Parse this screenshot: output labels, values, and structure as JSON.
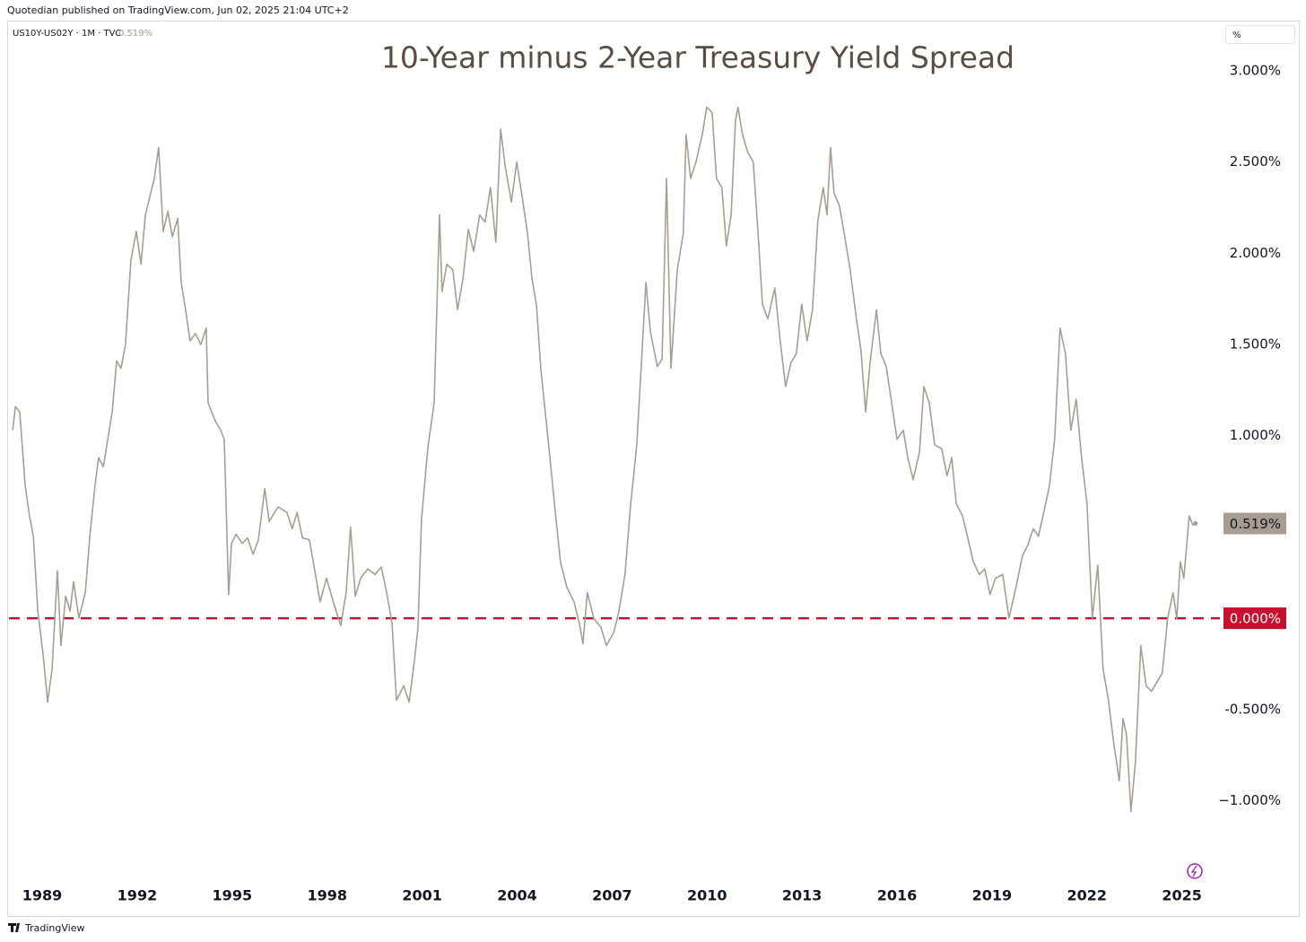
{
  "chart_data": {
    "type": "line",
    "header": "Quotedian published on TradingView.com, Jun 02, 2025 21:04 UTC+2",
    "title": "10-Year minus 2-Year Treasury Yield Spread",
    "unit_button": "%",
    "brand": "TradingView",
    "last_label": "0.519%",
    "x": [
      1988.07,
      1988.15,
      1988.29,
      1988.46,
      1988.6,
      1988.72,
      1988.86,
      1989.03,
      1989.17,
      1989.31,
      1989.48,
      1989.59,
      1989.74,
      1989.88,
      1989.99,
      1990.16,
      1990.36,
      1990.5,
      1990.67,
      1990.78,
      1990.93,
      1991.07,
      1991.21,
      1991.35,
      1991.49,
      1991.63,
      1991.8,
      1991.97,
      1992.12,
      1992.26,
      1992.4,
      1992.54,
      1992.68,
      1992.82,
      1992.97,
      1993.11,
      1993.28,
      1993.39,
      1993.53,
      1993.67,
      1993.84,
      1994.01,
      1994.18,
      1994.24,
      1994.47,
      1994.64,
      1994.75,
      1994.89,
      1994.98,
      1995.12,
      1995.32,
      1995.49,
      1995.66,
      1995.83,
      1996.03,
      1996.17,
      1996.45,
      1996.73,
      1996.9,
      1997.05,
      1997.22,
      1997.44,
      1997.58,
      1997.78,
      1997.98,
      1998.21,
      1998.43,
      1998.6,
      1998.74,
      1998.89,
      1999.06,
      1999.28,
      1999.51,
      1999.71,
      1999.88,
      2000.05,
      2000.19,
      2000.42,
      2000.59,
      2000.76,
      2000.87,
      2000.98,
      2001.18,
      2001.38,
      2001.55,
      2001.63,
      2001.78,
      2001.97,
      2002.12,
      2002.29,
      2002.46,
      2002.63,
      2002.82,
      2002.99,
      2003.16,
      2003.33,
      2003.48,
      2003.62,
      2003.82,
      2003.99,
      2004.16,
      2004.33,
      2004.47,
      2004.61,
      2004.75,
      2004.86,
      2005.01,
      2005.18,
      2005.37,
      2005.57,
      2005.8,
      2005.97,
      2006.08,
      2006.22,
      2006.42,
      2006.65,
      2006.82,
      2007.05,
      2007.22,
      2007.41,
      2007.58,
      2007.78,
      2007.95,
      2008.07,
      2008.21,
      2008.43,
      2008.58,
      2008.72,
      2008.86,
      2009.06,
      2009.25,
      2009.34,
      2009.48,
      2009.65,
      2009.85,
      2009.99,
      2010.16,
      2010.3,
      2010.47,
      2010.61,
      2010.76,
      2010.9,
      2010.98,
      2011.12,
      2011.29,
      2011.46,
      2011.63,
      2011.75,
      2011.92,
      2012.14,
      2012.31,
      2012.48,
      2012.65,
      2012.82,
      2012.99,
      2013.16,
      2013.33,
      2013.5,
      2013.67,
      2013.79,
      2013.9,
      2014.01,
      2014.18,
      2014.35,
      2014.52,
      2014.72,
      2014.86,
      2015.01,
      2015.15,
      2015.35,
      2015.49,
      2015.66,
      2015.8,
      2016.0,
      2016.2,
      2016.34,
      2016.51,
      2016.71,
      2016.85,
      2017.02,
      2017.19,
      2017.41,
      2017.58,
      2017.73,
      2017.87,
      2018.07,
      2018.21,
      2018.41,
      2018.6,
      2018.77,
      2018.94,
      2019.11,
      2019.34,
      2019.54,
      2019.76,
      2019.96,
      2020.13,
      2020.3,
      2020.47,
      2020.61,
      2020.81,
      2020.98,
      2021.15,
      2021.32,
      2021.49,
      2021.66,
      2021.83,
      2022.0,
      2022.17,
      2022.34,
      2022.51,
      2022.68,
      2022.85,
      2023.02,
      2023.14,
      2023.25,
      2023.39,
      2023.53,
      2023.7,
      2023.87,
      2024.04,
      2024.21,
      2024.38,
      2024.55,
      2024.72,
      2024.84,
      2024.95,
      2025.06,
      2025.23,
      2025.35,
      2025.43
    ],
    "series": [
      {
        "name": "US10Y-US02Y · 1M · TVC",
        "color": "#a89d92",
        "values": [
          1.03,
          1.16,
          1.13,
          0.73,
          0.56,
          0.45,
          0.04,
          -0.2,
          -0.46,
          -0.28,
          0.26,
          -0.15,
          0.12,
          0.04,
          0.2,
          0.0,
          0.14,
          0.44,
          0.73,
          0.88,
          0.83,
          0.98,
          1.13,
          1.41,
          1.37,
          1.5,
          1.96,
          2.12,
          1.94,
          2.21,
          2.31,
          2.41,
          2.58,
          2.12,
          2.23,
          2.09,
          2.19,
          1.84,
          1.69,
          1.52,
          1.56,
          1.5,
          1.59,
          1.18,
          1.08,
          1.03,
          0.98,
          0.13,
          0.41,
          0.46,
          0.41,
          0.44,
          0.35,
          0.43,
          0.71,
          0.53,
          0.61,
          0.58,
          0.49,
          0.58,
          0.44,
          0.43,
          0.29,
          0.09,
          0.22,
          0.08,
          -0.04,
          0.14,
          0.5,
          0.12,
          0.22,
          0.27,
          0.24,
          0.28,
          0.14,
          -0.03,
          -0.45,
          -0.37,
          -0.46,
          -0.23,
          -0.05,
          0.54,
          0.93,
          1.18,
          2.21,
          1.79,
          1.94,
          1.91,
          1.69,
          1.86,
          2.13,
          2.01,
          2.21,
          2.17,
          2.36,
          2.06,
          2.68,
          2.48,
          2.28,
          2.5,
          2.31,
          2.11,
          1.86,
          1.72,
          1.37,
          1.18,
          0.93,
          0.63,
          0.31,
          0.17,
          0.09,
          -0.03,
          -0.14,
          0.14,
          0.0,
          -0.05,
          -0.15,
          -0.08,
          0.04,
          0.24,
          0.61,
          0.95,
          1.47,
          1.84,
          1.57,
          1.38,
          1.42,
          2.41,
          1.37,
          1.91,
          2.11,
          2.65,
          2.41,
          2.5,
          2.65,
          2.8,
          2.77,
          2.41,
          2.36,
          2.04,
          2.21,
          2.73,
          2.8,
          2.65,
          2.55,
          2.5,
          2.06,
          1.72,
          1.64,
          1.81,
          1.52,
          1.27,
          1.4,
          1.45,
          1.72,
          1.52,
          1.69,
          2.18,
          2.36,
          2.21,
          2.58,
          2.33,
          2.26,
          2.09,
          1.91,
          1.64,
          1.47,
          1.13,
          1.4,
          1.69,
          1.45,
          1.38,
          1.22,
          0.98,
          1.03,
          0.88,
          0.76,
          0.91,
          1.27,
          1.18,
          0.95,
          0.93,
          0.78,
          0.88,
          0.63,
          0.56,
          0.46,
          0.31,
          0.24,
          0.27,
          0.13,
          0.22,
          0.24,
          0.0,
          0.17,
          0.34,
          0.4,
          0.49,
          0.45,
          0.56,
          0.72,
          0.98,
          1.59,
          1.45,
          1.03,
          1.2,
          0.88,
          0.63,
          0.0,
          0.29,
          -0.28,
          -0.45,
          -0.69,
          -0.89,
          -0.55,
          -0.64,
          -1.06,
          -0.79,
          -0.15,
          -0.37,
          -0.4,
          -0.35,
          -0.3,
          0.0,
          0.14,
          0.0,
          0.31,
          0.22,
          0.56,
          0.51,
          0.519
        ]
      }
    ],
    "reference_line": {
      "value": 0,
      "label": "0.000%",
      "color": "#c8102e"
    },
    "xlim": [
      1987.95,
      2026.2
    ],
    "xticks": [
      1989,
      1992,
      1995,
      1998,
      2001,
      2004,
      2007,
      2010,
      2013,
      2016,
      2019,
      2022,
      2025
    ],
    "ylim": [
      -1.43,
      3.25
    ],
    "yticks": [
      {
        "value": 3,
        "label": "3.000%"
      },
      {
        "value": 2.5,
        "label": "2.500%"
      },
      {
        "value": 2,
        "label": "2.000%"
      },
      {
        "value": 1.5,
        "label": "1.500%"
      },
      {
        "value": 1,
        "label": "1.000%"
      },
      {
        "value": -0.5,
        "label": "-0.500%"
      },
      {
        "value": -1,
        "label": "−1.000%"
      }
    ],
    "grid": false
  }
}
